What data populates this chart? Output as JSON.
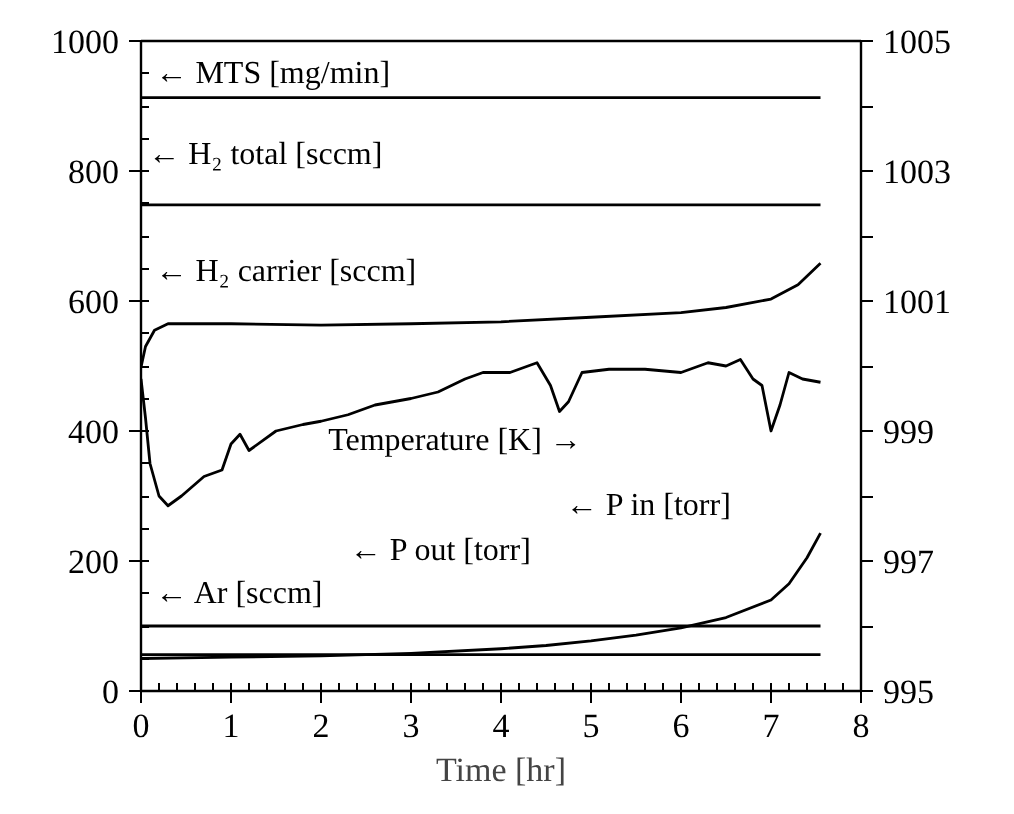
{
  "chart_data": {
    "type": "line",
    "xlabel": "Time [hr]",
    "xlim": [
      0,
      8
    ],
    "xticks": [
      0,
      1,
      2,
      3,
      4,
      5,
      6,
      7,
      8
    ],
    "ylim": [
      0,
      1000
    ],
    "yticks": [
      0,
      200,
      400,
      600,
      800,
      1000
    ],
    "y2lim": [
      995,
      1005
    ],
    "y2ticks": [
      995,
      {
        "value": 996,
        "label": null
      },
      997,
      {
        "value": 998,
        "label": null
      },
      999,
      {
        "value": 1000,
        "label": null
      },
      1001,
      {
        "value": 1002,
        "label": null
      },
      1003,
      {
        "value": 1004,
        "label": null
      },
      1005
    ],
    "grid": false,
    "marker": "none",
    "line_style": "solid",
    "series": [
      {
        "color": "#000000",
        "x": [
          0,
          7.55
        ],
        "values": [
          913,
          913
        ]
      },
      {
        "color": "#000000",
        "x": [
          0,
          7.55
        ],
        "values": [
          748,
          748
        ]
      },
      {
        "color": "#000000",
        "x": [
          0,
          0.05,
          0.15,
          0.3,
          1,
          2,
          3,
          4,
          5,
          6,
          6.5,
          7,
          7.3,
          7.55
        ],
        "values": [
          498,
          530,
          555,
          565,
          565,
          563,
          565,
          568,
          575,
          582,
          590,
          603,
          625,
          658
        ]
      },
      {
        "color": "#000000",
        "axis": "y2",
        "x": [
          0,
          0.05,
          0.1,
          0.2,
          0.3,
          0.45,
          0.7,
          0.9,
          1.0,
          1.1,
          1.2,
          1.5,
          1.8,
          2.0,
          2.3,
          2.6,
          3.0,
          3.3,
          3.6,
          3.8,
          4.1,
          4.4,
          4.55,
          4.65,
          4.75,
          4.9,
          5.2,
          5.6,
          6.0,
          6.3,
          6.5,
          6.66,
          6.8,
          6.9,
          7.0,
          7.1,
          7.2,
          7.35,
          7.55
        ],
        "values": [
          999.8,
          999.2,
          998.5,
          998.0,
          997.85,
          998.0,
          998.3,
          998.4,
          998.8,
          998.95,
          998.7,
          999.0,
          999.1,
          999.15,
          999.25,
          999.4,
          999.5,
          999.6,
          999.8,
          999.9,
          999.9,
          1000.05,
          999.7,
          999.3,
          999.45,
          999.9,
          999.95,
          999.95,
          999.9,
          1000.05,
          1000.0,
          1000.1,
          999.8,
          999.7,
          999.0,
          999.4,
          999.9,
          999.8,
          999.75
        ]
      },
      {
        "color": "#000000",
        "x": [
          0,
          1,
          2,
          3,
          4,
          4.5,
          5,
          5.5,
          6,
          6.5,
          7,
          7.2,
          7.4,
          7.55
        ],
        "values": [
          50,
          52,
          54,
          58,
          65,
          70,
          77,
          86,
          97,
          113,
          140,
          165,
          205,
          243
        ]
      },
      {
        "color": "#000000",
        "x": [
          0,
          7.55
        ],
        "values": [
          56,
          56
        ]
      },
      {
        "color": "#000000",
        "x": [
          0,
          7.55
        ],
        "values": [
          100,
          100
        ]
      }
    ],
    "annotations": [
      "← MTS [mg/min]",
      "← H₂ total  [sccm]",
      "← H₂ carrier [sccm]",
      "Temperature [K] →",
      "← P in [torr]",
      "← P out [torr]",
      "← Ar [sccm]"
    ]
  }
}
